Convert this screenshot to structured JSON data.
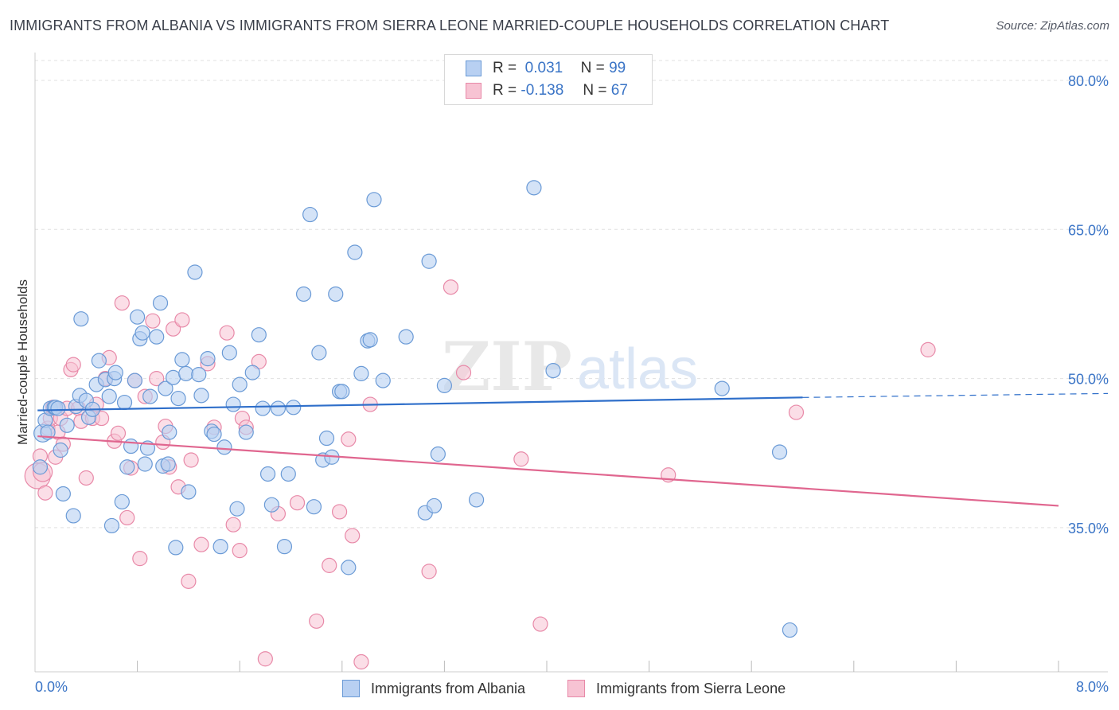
{
  "title": "IMMIGRANTS FROM ALBANIA VS IMMIGRANTS FROM SIERRA LEONE MARRIED-COUPLE HOUSEHOLDS CORRELATION CHART",
  "source": "Source: ZipAtlas.com",
  "watermark": {
    "zip": "ZIP",
    "atlas": "atlas"
  },
  "legend": {
    "r_label": "R =",
    "n_label": "N =",
    "items": [
      {
        "r": "0.031",
        "n": "99"
      },
      {
        "r": "-0.138",
        "n": "67"
      }
    ]
  },
  "colors": {
    "albania_fill": "#b8d0f2",
    "albania_stroke": "#6a9ad6",
    "albania_line": "#2f6fca",
    "sierra_fill": "#f7c3d3",
    "sierra_stroke": "#e889a8",
    "sierra_line": "#e0668f",
    "tick_label": "#3a74c6",
    "grid": "#e0e0e0"
  },
  "chart_data": {
    "type": "scatter",
    "title": "IMMIGRANTS FROM ALBANIA VS IMMIGRANTS FROM SIERRA LEONE MARRIED-COUPLE HOUSEHOLDS CORRELATION CHART",
    "xlabel": "",
    "ylabel": "Married-couple Households",
    "xlim": [
      0,
      8
    ],
    "ylim": [
      20.5,
      82
    ],
    "x_tick_labels": [
      {
        "value": 0,
        "label": "0.0%"
      },
      {
        "value": 8,
        "label": "8.0%"
      }
    ],
    "y_tick_labels": [
      {
        "value": 35,
        "label": "35.0%"
      },
      {
        "value": 50,
        "label": "50.0%"
      },
      {
        "value": 65,
        "label": "65.0%"
      },
      {
        "value": 80,
        "label": "80.0%"
      }
    ],
    "x_minor_ticks": [
      0.8,
      1.6,
      2.4,
      3.2,
      4.0,
      4.8,
      5.6,
      6.4,
      7.2,
      8.0
    ],
    "series": [
      {
        "name": "Immigrants from Albania",
        "r": 0.031,
        "n": 99,
        "trend": {
          "x0": 0.02,
          "y0": 46.8,
          "x1": 6.0,
          "y1": 48.1,
          "dash_to_x": 8.0,
          "dash_to_y": 48.5
        },
        "points": [
          [
            0.04,
            41.1
          ],
          [
            0.06,
            44.5
          ],
          [
            0.08,
            45.8
          ],
          [
            0.12,
            47.0
          ],
          [
            0.15,
            47.1
          ],
          [
            0.2,
            42.8
          ],
          [
            0.22,
            38.4
          ],
          [
            0.25,
            45.3
          ],
          [
            0.3,
            36.2
          ],
          [
            0.32,
            47.2
          ],
          [
            0.35,
            48.3
          ],
          [
            0.36,
            56.0
          ],
          [
            0.4,
            47.8
          ],
          [
            0.42,
            46.1
          ],
          [
            0.45,
            46.9
          ],
          [
            0.48,
            49.4
          ],
          [
            0.5,
            51.8
          ],
          [
            0.55,
            49.9
          ],
          [
            0.58,
            48.2
          ],
          [
            0.6,
            35.2
          ],
          [
            0.62,
            50.0
          ],
          [
            0.63,
            50.6
          ],
          [
            0.68,
            37.6
          ],
          [
            0.7,
            47.6
          ],
          [
            0.72,
            41.1
          ],
          [
            0.75,
            43.2
          ],
          [
            0.78,
            49.8
          ],
          [
            0.8,
            56.2
          ],
          [
            0.82,
            54.0
          ],
          [
            0.84,
            54.6
          ],
          [
            0.86,
            41.4
          ],
          [
            0.88,
            43.0
          ],
          [
            0.9,
            48.2
          ],
          [
            0.95,
            54.2
          ],
          [
            0.98,
            57.6
          ],
          [
            1.0,
            41.2
          ],
          [
            1.02,
            49.0
          ],
          [
            1.04,
            41.4
          ],
          [
            1.05,
            44.6
          ],
          [
            1.08,
            50.1
          ],
          [
            1.1,
            33.0
          ],
          [
            1.12,
            48.0
          ],
          [
            1.15,
            51.9
          ],
          [
            1.18,
            50.5
          ],
          [
            1.2,
            38.6
          ],
          [
            1.25,
            60.7
          ],
          [
            1.28,
            50.4
          ],
          [
            1.3,
            48.3
          ],
          [
            1.35,
            52.0
          ],
          [
            1.38,
            44.7
          ],
          [
            1.4,
            44.4
          ],
          [
            1.45,
            33.1
          ],
          [
            1.48,
            43.1
          ],
          [
            1.52,
            52.6
          ],
          [
            1.55,
            47.4
          ],
          [
            1.58,
            36.9
          ],
          [
            1.6,
            49.4
          ],
          [
            1.65,
            44.6
          ],
          [
            1.7,
            50.6
          ],
          [
            1.75,
            54.4
          ],
          [
            1.78,
            47.0
          ],
          [
            1.82,
            40.4
          ],
          [
            1.85,
            37.3
          ],
          [
            1.9,
            47.0
          ],
          [
            1.95,
            33.1
          ],
          [
            1.98,
            40.4
          ],
          [
            2.02,
            47.1
          ],
          [
            2.1,
            58.5
          ],
          [
            2.15,
            66.5
          ],
          [
            2.18,
            37.1
          ],
          [
            2.22,
            52.6
          ],
          [
            2.25,
            41.8
          ],
          [
            2.28,
            44.0
          ],
          [
            2.32,
            42.1
          ],
          [
            2.35,
            58.5
          ],
          [
            2.38,
            48.7
          ],
          [
            2.4,
            48.7
          ],
          [
            2.45,
            31.0
          ],
          [
            2.5,
            62.7
          ],
          [
            2.55,
            50.5
          ],
          [
            2.6,
            53.8
          ],
          [
            2.62,
            53.9
          ],
          [
            2.65,
            68.0
          ],
          [
            2.72,
            49.8
          ],
          [
            2.9,
            54.2
          ],
          [
            3.05,
            36.5
          ],
          [
            3.08,
            61.8
          ],
          [
            3.12,
            37.2
          ],
          [
            3.15,
            42.4
          ],
          [
            3.2,
            49.3
          ],
          [
            3.45,
            37.8
          ],
          [
            3.9,
            69.2
          ],
          [
            4.05,
            50.8
          ],
          [
            5.37,
            49.0
          ],
          [
            5.82,
            42.6
          ],
          [
            5.9,
            24.7
          ],
          [
            0.1,
            44.6
          ],
          [
            0.16,
            47.1
          ],
          [
            0.18,
            47.0
          ]
        ]
      },
      {
        "name": "Immigrants from Sierra Leone",
        "r": -0.138,
        "n": 67,
        "trend": {
          "x0": 0.02,
          "y0": 44.2,
          "x1": 8.0,
          "y1": 37.2
        },
        "points": [
          [
            0.02,
            40.2
          ],
          [
            0.04,
            42.2
          ],
          [
            0.06,
            40.6
          ],
          [
            0.08,
            38.5
          ],
          [
            0.1,
            45.0
          ],
          [
            0.12,
            46.0
          ],
          [
            0.14,
            47.1
          ],
          [
            0.16,
            42.1
          ],
          [
            0.18,
            44.6
          ],
          [
            0.2,
            46.0
          ],
          [
            0.22,
            43.4
          ],
          [
            0.25,
            47.0
          ],
          [
            0.28,
            50.9
          ],
          [
            0.3,
            51.4
          ],
          [
            0.34,
            47.0
          ],
          [
            0.36,
            45.7
          ],
          [
            0.4,
            40.0
          ],
          [
            0.45,
            46.0
          ],
          [
            0.48,
            47.4
          ],
          [
            0.52,
            46.0
          ],
          [
            0.55,
            50.0
          ],
          [
            0.58,
            52.1
          ],
          [
            0.62,
            43.7
          ],
          [
            0.65,
            44.5
          ],
          [
            0.68,
            57.6
          ],
          [
            0.72,
            36.0
          ],
          [
            0.75,
            41.0
          ],
          [
            0.78,
            49.8
          ],
          [
            0.82,
            31.9
          ],
          [
            0.86,
            48.2
          ],
          [
            0.92,
            55.8
          ],
          [
            0.95,
            50.0
          ],
          [
            1.0,
            43.6
          ],
          [
            1.02,
            45.2
          ],
          [
            1.05,
            41.1
          ],
          [
            1.08,
            55.0
          ],
          [
            1.12,
            39.1
          ],
          [
            1.15,
            55.9
          ],
          [
            1.2,
            29.6
          ],
          [
            1.22,
            41.8
          ],
          [
            1.3,
            33.3
          ],
          [
            1.35,
            51.5
          ],
          [
            1.4,
            45.1
          ],
          [
            1.5,
            54.6
          ],
          [
            1.55,
            35.3
          ],
          [
            1.6,
            32.7
          ],
          [
            1.62,
            46.0
          ],
          [
            1.65,
            45.1
          ],
          [
            1.75,
            51.7
          ],
          [
            1.8,
            21.8
          ],
          [
            1.9,
            36.4
          ],
          [
            2.05,
            37.5
          ],
          [
            2.2,
            25.6
          ],
          [
            2.3,
            31.2
          ],
          [
            2.38,
            36.6
          ],
          [
            2.45,
            43.9
          ],
          [
            2.48,
            34.2
          ],
          [
            2.55,
            21.5
          ],
          [
            2.62,
            47.4
          ],
          [
            3.08,
            30.6
          ],
          [
            3.25,
            59.2
          ],
          [
            3.35,
            50.6
          ],
          [
            3.8,
            41.9
          ],
          [
            3.95,
            25.3
          ],
          [
            4.95,
            40.3
          ],
          [
            5.95,
            46.6
          ],
          [
            6.98,
            52.9
          ]
        ]
      }
    ]
  },
  "bottom_legend": [
    "Immigrants from Albania",
    "Immigrants from Sierra Leone"
  ]
}
